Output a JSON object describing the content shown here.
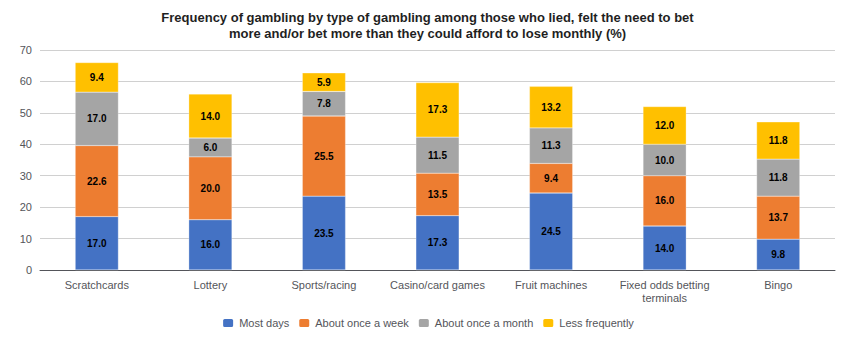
{
  "chart_data": {
    "type": "bar",
    "stacked": true,
    "title": "Frequency of gambling by type of gambling among those who lied, felt the need to bet\nmore and/or bet more than they could afford to lose monthly (%)",
    "categories": [
      "Scratchcards",
      "Lottery",
      "Sports/racing",
      "Casino/card games",
      "Fruit machines",
      "Fixed odds betting\nterminals",
      "Bingo"
    ],
    "series": [
      {
        "name": "Most days",
        "color": "#4472C4",
        "values": [
          17.0,
          16.0,
          23.5,
          17.3,
          24.5,
          14.0,
          9.8
        ],
        "value_labels": [
          "17.0",
          "16.0",
          "23.5",
          "17.3",
          "24.5",
          "14.0",
          "9.8"
        ]
      },
      {
        "name": "About once a week",
        "color": "#ED7D31",
        "values": [
          22.6,
          20.0,
          25.5,
          13.5,
          9.4,
          16.0,
          13.7
        ],
        "value_labels": [
          "22.6",
          "20.0",
          "25.5",
          "13.5",
          "9.4",
          "16.0",
          "13.7"
        ]
      },
      {
        "name": "About once a month",
        "color": "#A5A5A5",
        "values": [
          17.0,
          6.0,
          7.8,
          11.5,
          11.3,
          10.0,
          11.8
        ],
        "value_labels": [
          "17.0",
          "6.0",
          "7.8",
          "11.5",
          "11.3",
          "10.0",
          "11.8"
        ]
      },
      {
        "name": "Less frequently",
        "color": "#FFC000",
        "values": [
          9.4,
          14.0,
          5.9,
          17.3,
          13.2,
          12.0,
          11.8
        ],
        "value_labels": [
          "9.4",
          "14.0",
          "5.9",
          "17.3",
          "13.2",
          "12.0",
          "11.8"
        ]
      }
    ],
    "ylim": [
      0,
      70
    ],
    "yticks": [
      0,
      10,
      20,
      30,
      40,
      50,
      60,
      70
    ],
    "grid": true,
    "data_labels": true,
    "legend": "bottom"
  }
}
